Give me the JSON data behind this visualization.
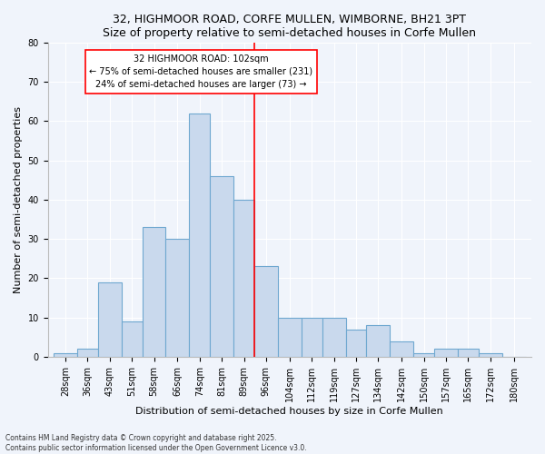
{
  "title1": "32, HIGHMOOR ROAD, CORFE MULLEN, WIMBORNE, BH21 3PT",
  "title2": "Size of property relative to semi-detached houses in Corfe Mullen",
  "xlabel": "Distribution of semi-detached houses by size in Corfe Mullen",
  "ylabel": "Number of semi-detached properties",
  "categories": [
    "28sqm",
    "36sqm",
    "43sqm",
    "51sqm",
    "58sqm",
    "66sqm",
    "74sqm",
    "81sqm",
    "89sqm",
    "96sqm",
    "104sqm",
    "112sqm",
    "119sqm",
    "127sqm",
    "134sqm",
    "142sqm",
    "150sqm",
    "157sqm",
    "165sqm",
    "172sqm",
    "180sqm"
  ],
  "values": [
    1,
    2,
    19,
    9,
    33,
    30,
    62,
    46,
    40,
    23,
    10,
    10,
    10,
    7,
    8,
    4,
    1,
    2,
    2,
    1,
    0
  ],
  "bar_color": "#c9d9ed",
  "bar_edge_color": "#6fa8d0",
  "bin_edges": [
    28,
    36,
    43,
    51,
    58,
    66,
    74,
    81,
    89,
    96,
    104,
    112,
    119,
    127,
    134,
    142,
    150,
    157,
    165,
    172,
    180,
    188
  ],
  "red_line_x": 96,
  "annotation_text": "32 HIGHMOOR ROAD: 102sqm\n← 75% of semi-detached houses are smaller (231)\n24% of semi-detached houses are larger (73) →",
  "ylim": [
    0,
    80
  ],
  "yticks": [
    0,
    10,
    20,
    30,
    40,
    50,
    60,
    70,
    80
  ],
  "footnote": "Contains HM Land Registry data © Crown copyright and database right 2025.\nContains public sector information licensed under the Open Government Licence v3.0.",
  "background_color": "#f0f4fb",
  "plot_background_color": "#f0f4fb",
  "title_fontsize": 9,
  "axis_label_fontsize": 8,
  "tick_fontsize": 7
}
